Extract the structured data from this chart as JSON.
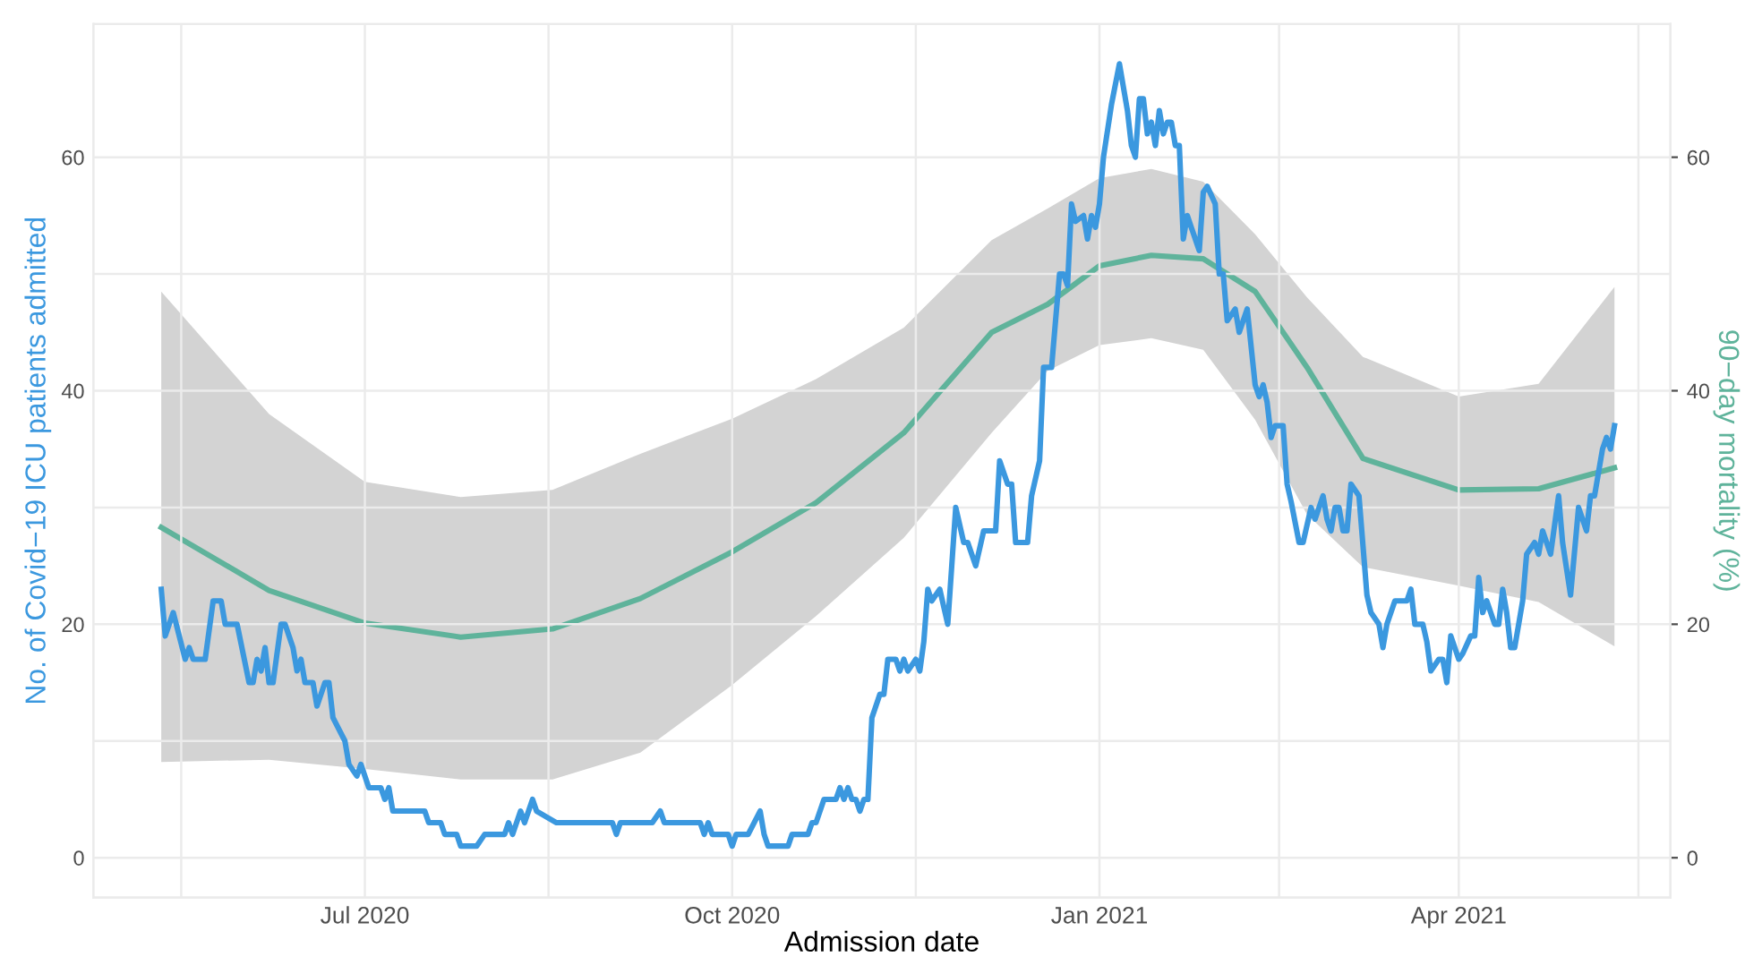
{
  "chart_data": {
    "type": "line",
    "xlabel": "Admission date",
    "ylabel": "No. of Covid−19 ICU patients admitted",
    "y2label": "90−day mortality (%)",
    "xlim": [
      "2020-04-24",
      "2021-05-24"
    ],
    "xticks": [
      {
        "value": "2020-05-16",
        "label": null
      },
      {
        "value": "2020-07-01",
        "label": "Jul 2020"
      },
      {
        "value": "2020-08-16",
        "label": null
      },
      {
        "value": "2020-10-01",
        "label": "Oct 2020"
      },
      {
        "value": "2020-11-16",
        "label": null
      },
      {
        "value": "2021-01-01",
        "label": "Jan 2021"
      },
      {
        "value": "2021-02-15",
        "label": null
      },
      {
        "value": "2021-04-01",
        "label": "Apr 2021"
      },
      {
        "value": "2021-05-16",
        "label": null
      }
    ],
    "ylim": [
      -3.4,
      71.4
    ],
    "yticks": [
      0,
      {
        "value": 10,
        "label": null
      },
      20,
      {
        "value": 30,
        "label": null
      },
      40,
      {
        "value": 50,
        "label": null
      },
      60
    ],
    "y2lim": [
      -3.4,
      71.4
    ],
    "y2ticks": [
      0,
      20,
      40,
      60
    ],
    "grid": true,
    "legend": false,
    "line_style": "solid",
    "marker": "none",
    "series": [
      {
        "color": "#3b98df",
        "axis": "y",
        "x": [
          "2020-05-11",
          "2020-05-12",
          "2020-05-14",
          "2020-05-17",
          "2020-05-18",
          "2020-05-19",
          "2020-05-22",
          "2020-05-24",
          "2020-05-26",
          "2020-05-27",
          "2020-05-30",
          "2020-06-02",
          "2020-06-03",
          "2020-06-04",
          "2020-06-05",
          "2020-06-06",
          "2020-06-07",
          "2020-06-08",
          "2020-06-10",
          "2020-06-11",
          "2020-06-13",
          "2020-06-14",
          "2020-06-15",
          "2020-06-16",
          "2020-06-18",
          "2020-06-19",
          "2020-06-21",
          "2020-06-22",
          "2020-06-23",
          "2020-06-26",
          "2020-06-27",
          "2020-06-29",
          "2020-06-30",
          "2020-07-02",
          "2020-07-05",
          "2020-07-06",
          "2020-07-07",
          "2020-07-08",
          "2020-07-16",
          "2020-07-17",
          "2020-07-20",
          "2020-07-21",
          "2020-07-24",
          "2020-07-25",
          "2020-07-29",
          "2020-07-31",
          "2020-08-05",
          "2020-08-06",
          "2020-08-07",
          "2020-08-09",
          "2020-08-10",
          "2020-08-12",
          "2020-08-13",
          "2020-08-18",
          "2020-09-01",
          "2020-09-02",
          "2020-09-03",
          "2020-09-11",
          "2020-09-13",
          "2020-09-14",
          "2020-09-23",
          "2020-09-24",
          "2020-09-25",
          "2020-09-26",
          "2020-09-30",
          "2020-10-01",
          "2020-10-02",
          "2020-10-05",
          "2020-10-08",
          "2020-10-09",
          "2020-10-10",
          "2020-10-15",
          "2020-10-16",
          "2020-10-20",
          "2020-10-21",
          "2020-10-22",
          "2020-10-24",
          "2020-10-27",
          "2020-10-28",
          "2020-10-29",
          "2020-10-30",
          "2020-10-31",
          "2020-11-01",
          "2020-11-02",
          "2020-11-03",
          "2020-11-04",
          "2020-11-05",
          "2020-11-06",
          "2020-11-07",
          "2020-11-08",
          "2020-11-09",
          "2020-11-11",
          "2020-11-12",
          "2020-11-13",
          "2020-11-14",
          "2020-11-16",
          "2020-11-17",
          "2020-11-18",
          "2020-11-19",
          "2020-11-20",
          "2020-11-22",
          "2020-11-24",
          "2020-11-26",
          "2020-11-28",
          "2020-11-29",
          "2020-11-30",
          "2020-12-01",
          "2020-12-03",
          "2020-12-06",
          "2020-12-07",
          "2020-12-09",
          "2020-12-10",
          "2020-12-11",
          "2020-12-13",
          "2020-12-14",
          "2020-12-15",
          "2020-12-17",
          "2020-12-18",
          "2020-12-20",
          "2020-12-22",
          "2020-12-23",
          "2020-12-24",
          "2020-12-25",
          "2020-12-26",
          "2020-12-28",
          "2020-12-29",
          "2020-12-30",
          "2020-12-31",
          "2021-01-01",
          "2021-01-02",
          "2021-01-04",
          "2021-01-06",
          "2021-01-08",
          "2021-01-09",
          "2021-01-10",
          "2021-01-11",
          "2021-01-12",
          "2021-01-13",
          "2021-01-14",
          "2021-01-15",
          "2021-01-16",
          "2021-01-17",
          "2021-01-18",
          "2021-01-19",
          "2021-01-20",
          "2021-01-21",
          "2021-01-22",
          "2021-01-23",
          "2021-01-24",
          "2021-01-26",
          "2021-01-27",
          "2021-01-28",
          "2021-01-30",
          "2021-01-31",
          "2021-02-01",
          "2021-02-02",
          "2021-02-04",
          "2021-02-05",
          "2021-02-06",
          "2021-02-07",
          "2021-02-09",
          "2021-02-10",
          "2021-02-11",
          "2021-02-12",
          "2021-02-13",
          "2021-02-14",
          "2021-02-16",
          "2021-02-17",
          "2021-02-18",
          "2021-02-20",
          "2021-02-21",
          "2021-02-23",
          "2021-02-24",
          "2021-02-26",
          "2021-02-27",
          "2021-02-28",
          "2021-03-01",
          "2021-03-02",
          "2021-03-03",
          "2021-03-04",
          "2021-03-05",
          "2021-03-07",
          "2021-03-09",
          "2021-03-10",
          "2021-03-12",
          "2021-03-13",
          "2021-03-14",
          "2021-03-16",
          "2021-03-19",
          "2021-03-20",
          "2021-03-21",
          "2021-03-23",
          "2021-03-24",
          "2021-03-25",
          "2021-03-27",
          "2021-03-28",
          "2021-03-29",
          "2021-03-30",
          "2021-04-01",
          "2021-04-02",
          "2021-04-04",
          "2021-04-05",
          "2021-04-06",
          "2021-04-07",
          "2021-04-08",
          "2021-04-09",
          "2021-04-10",
          "2021-04-11",
          "2021-04-12",
          "2021-04-13",
          "2021-04-14",
          "2021-04-15",
          "2021-04-17",
          "2021-04-18",
          "2021-04-20",
          "2021-04-21",
          "2021-04-22",
          "2021-04-24",
          "2021-04-26",
          "2021-04-27",
          "2021-04-29",
          "2021-05-01",
          "2021-05-03",
          "2021-05-04",
          "2021-05-05",
          "2021-05-07",
          "2021-05-08",
          "2021-05-09",
          "2021-05-10"
        ],
        "values": [
          23,
          19,
          21,
          17,
          18,
          17,
          17,
          22,
          22,
          20,
          20,
          15,
          15,
          17,
          16,
          18,
          15,
          15,
          20,
          20,
          18,
          16,
          17,
          15,
          15,
          13,
          15,
          15,
          12,
          10,
          8,
          7,
          8,
          6,
          6,
          5,
          6,
          4,
          4,
          3,
          3,
          2,
          2,
          1,
          1,
          2,
          2,
          3,
          2,
          4,
          3,
          5,
          4,
          3,
          3,
          2,
          3,
          3,
          4,
          3,
          3,
          2,
          3,
          2,
          2,
          1,
          2,
          2,
          4,
          2,
          1,
          1,
          2,
          2,
          3,
          3,
          5,
          5,
          6,
          5,
          6,
          5,
          5,
          4,
          5,
          5,
          12,
          13,
          14,
          14,
          17,
          17,
          16,
          17,
          16,
          17,
          16,
          18.5,
          23,
          22,
          23,
          20,
          30,
          27,
          27,
          26,
          25,
          28,
          28,
          34,
          32,
          32,
          27,
          27,
          27,
          31,
          34,
          42,
          42,
          50,
          50,
          49,
          56,
          54.5,
          55,
          53,
          55,
          54,
          56,
          60,
          64.5,
          68,
          64,
          61,
          60,
          65,
          65,
          62,
          63,
          61,
          64,
          62,
          63,
          63,
          61,
          61,
          53,
          55,
          54,
          52,
          57,
          57.5,
          56,
          50,
          50,
          46,
          47,
          45,
          46,
          47,
          40.5,
          39.5,
          40.5,
          39,
          36,
          37,
          37,
          32,
          30.5,
          27,
          27,
          30,
          29,
          31,
          29,
          28,
          30,
          30,
          28,
          28,
          32,
          31,
          22.5,
          21,
          20,
          18,
          20,
          22,
          22,
          23,
          20,
          20,
          18.5,
          16,
          17,
          17,
          15,
          19,
          17,
          17.5,
          19,
          19,
          24,
          21,
          22,
          21,
          20,
          20,
          23,
          21,
          18,
          18,
          22,
          26,
          27,
          26,
          28,
          26,
          31,
          27,
          22.5,
          30,
          28,
          31,
          31,
          35,
          36,
          35,
          37
        ]
      },
      {
        "color": "#5fb39b",
        "axis": "y2",
        "x": [
          "2020-05-11",
          "2020-06-07",
          "2020-07-01",
          "2020-07-25",
          "2020-08-17",
          "2020-09-08",
          "2020-10-01",
          "2020-10-22",
          "2020-11-13",
          "2020-12-05",
          "2020-12-19",
          "2021-01-01",
          "2021-01-14",
          "2021-01-27",
          "2021-02-09",
          "2021-02-22",
          "2021-03-08",
          "2021-04-01",
          "2021-04-21",
          "2021-05-10"
        ],
        "values": [
          28.3,
          22.9,
          20.1,
          18.9,
          19.6,
          22.2,
          26.2,
          30.4,
          36.4,
          45,
          47.4,
          50.7,
          51.6,
          51.3,
          48.5,
          42,
          34.2,
          31.5,
          31.6,
          33.4
        ],
        "lower": [
          8.2,
          8.4,
          7.6,
          6.7,
          6.7,
          9.0,
          14.8,
          20.7,
          27.4,
          36.4,
          41.7,
          43.9,
          44.5,
          43.5,
          37.5,
          29.4,
          24.9,
          23.3,
          21.9,
          18.1
        ],
        "upper": [
          48.5,
          38,
          32.2,
          30.9,
          31.5,
          34.6,
          37.6,
          41,
          45.4,
          52.9,
          55.6,
          58.2,
          59,
          57.9,
          53.4,
          48,
          42.9,
          39.5,
          40.6,
          48.9
        ]
      }
    ]
  }
}
